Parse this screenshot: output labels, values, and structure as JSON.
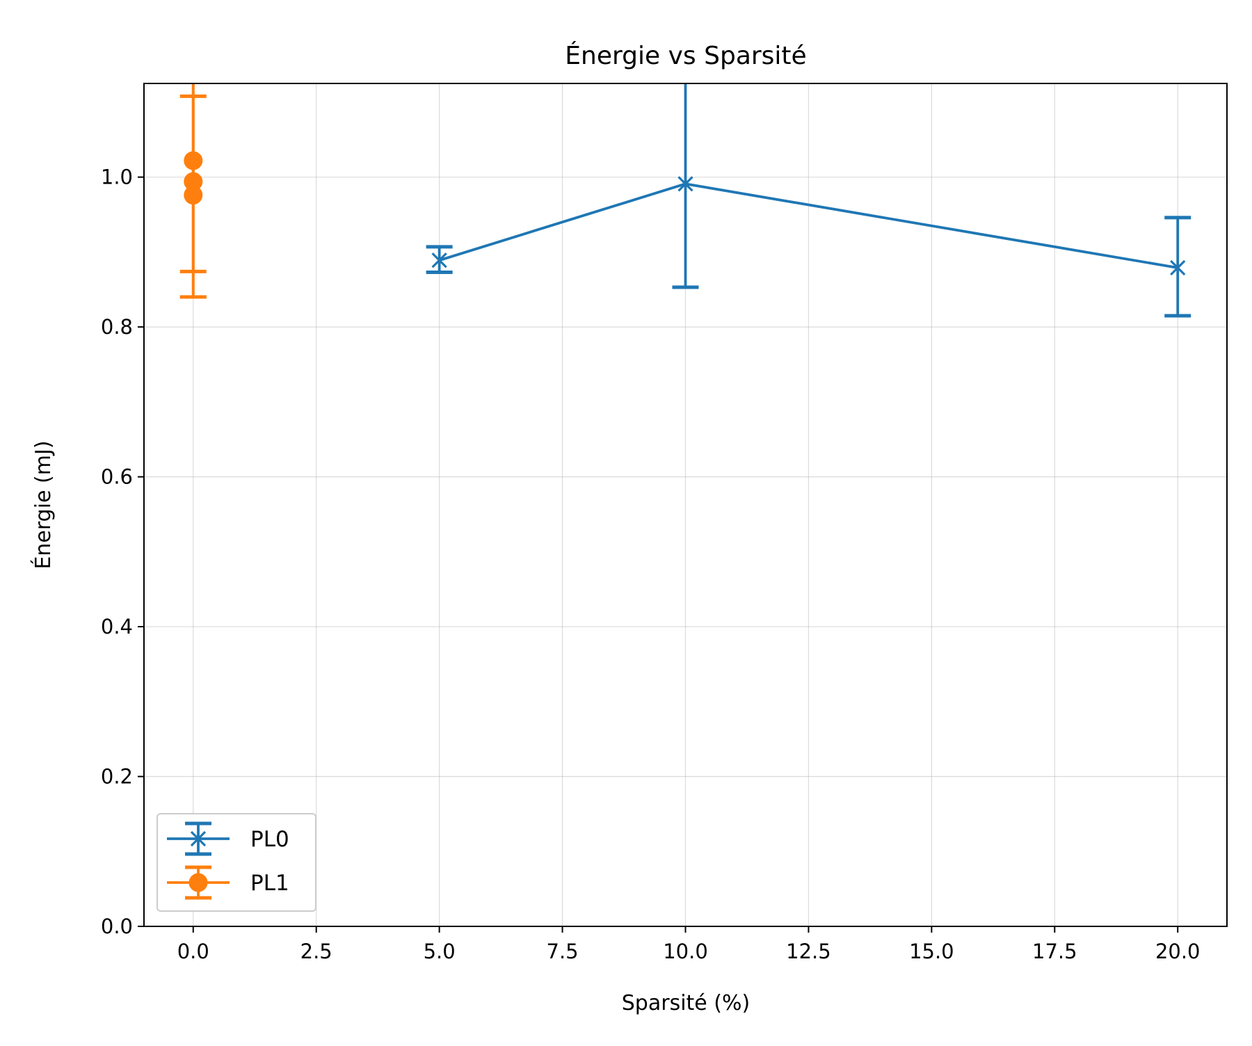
{
  "chart_data": {
    "type": "line",
    "title": "Énergie vs Sparsité",
    "xlabel": "Sparsité (%)",
    "ylabel": "Énergie (mJ)",
    "xlim": [
      -1.0,
      21.0
    ],
    "ylim": [
      0.0,
      1.125
    ],
    "x_ticks": [
      {
        "value": 0.0,
        "label": "0.0"
      },
      {
        "value": 2.5,
        "label": "2.5"
      },
      {
        "value": 5.0,
        "label": "5.0"
      },
      {
        "value": 7.5,
        "label": "7.5"
      },
      {
        "value": 10.0,
        "label": "10.0"
      },
      {
        "value": 12.5,
        "label": "12.5"
      },
      {
        "value": 15.0,
        "label": "15.0"
      },
      {
        "value": 17.5,
        "label": "17.5"
      },
      {
        "value": 20.0,
        "label": "20.0"
      }
    ],
    "y_ticks": [
      {
        "value": 0.0,
        "label": "0.0"
      },
      {
        "value": 0.2,
        "label": "0.2"
      },
      {
        "value": 0.4,
        "label": "0.4"
      },
      {
        "value": 0.6,
        "label": "0.6"
      },
      {
        "value": 0.8,
        "label": "0.8"
      },
      {
        "value": 1.0,
        "label": "1.0"
      }
    ],
    "grid": true,
    "legend_position": "lower-left",
    "series": [
      {
        "name": "PL0",
        "color": "#1f77b4",
        "marker": "x",
        "points": [
          {
            "x": 5.0,
            "y": 0.889,
            "err_low": 0.873,
            "err_high": 0.907
          },
          {
            "x": 10.0,
            "y": 0.991,
            "err_low": 0.853,
            "err_high": 1.13
          },
          {
            "x": 20.0,
            "y": 0.879,
            "err_low": 0.815,
            "err_high": 0.946
          }
        ]
      },
      {
        "name": "PL1",
        "color": "#ff7f0e",
        "marker": "o",
        "points": [
          {
            "x": 0.0,
            "y": 1.022,
            "err_low": 0.84,
            "err_high": 1.13
          },
          {
            "x": 0.0,
            "y": 0.994,
            "err_low": 0.874,
            "err_high": 1.108
          },
          {
            "x": 0.0,
            "y": 0.976,
            "err_low": 0.84,
            "err_high": 1.13
          }
        ]
      }
    ]
  }
}
